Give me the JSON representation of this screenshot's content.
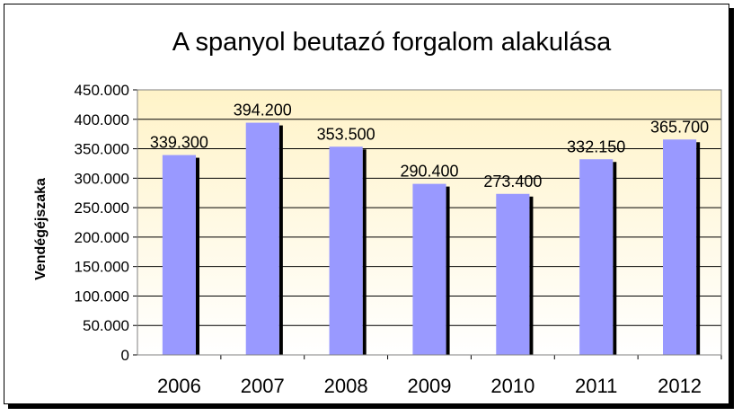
{
  "chart_data": {
    "type": "bar",
    "title": "A spanyol beutazó forgalom alakulása",
    "xlabel": "",
    "ylabel": "Vendégéjszaka",
    "categories": [
      "2006",
      "2007",
      "2008",
      "2009",
      "2010",
      "2011",
      "2012"
    ],
    "values": [
      339300,
      394200,
      353500,
      290400,
      273400,
      332150,
      365700
    ],
    "value_labels": [
      "339.300",
      "394.200",
      "353.500",
      "290.400",
      "273.400",
      "332.150",
      "365.700"
    ],
    "ylim": [
      0,
      450000
    ],
    "yticks": [
      0,
      50000,
      100000,
      150000,
      200000,
      250000,
      300000,
      350000,
      400000,
      450000
    ],
    "ytick_labels": [
      "0",
      "50.000",
      "100.000",
      "150.000",
      "200.000",
      "250.000",
      "300.000",
      "350.000",
      "400.000",
      "450.000"
    ],
    "grid": true,
    "legend": "none",
    "colors": {
      "bar": "#9999ff",
      "bar_shadow": "#000000",
      "plot_background_top": "#fff3c8",
      "plot_background_bottom": "#ffffff",
      "gridline": "#000000"
    }
  }
}
